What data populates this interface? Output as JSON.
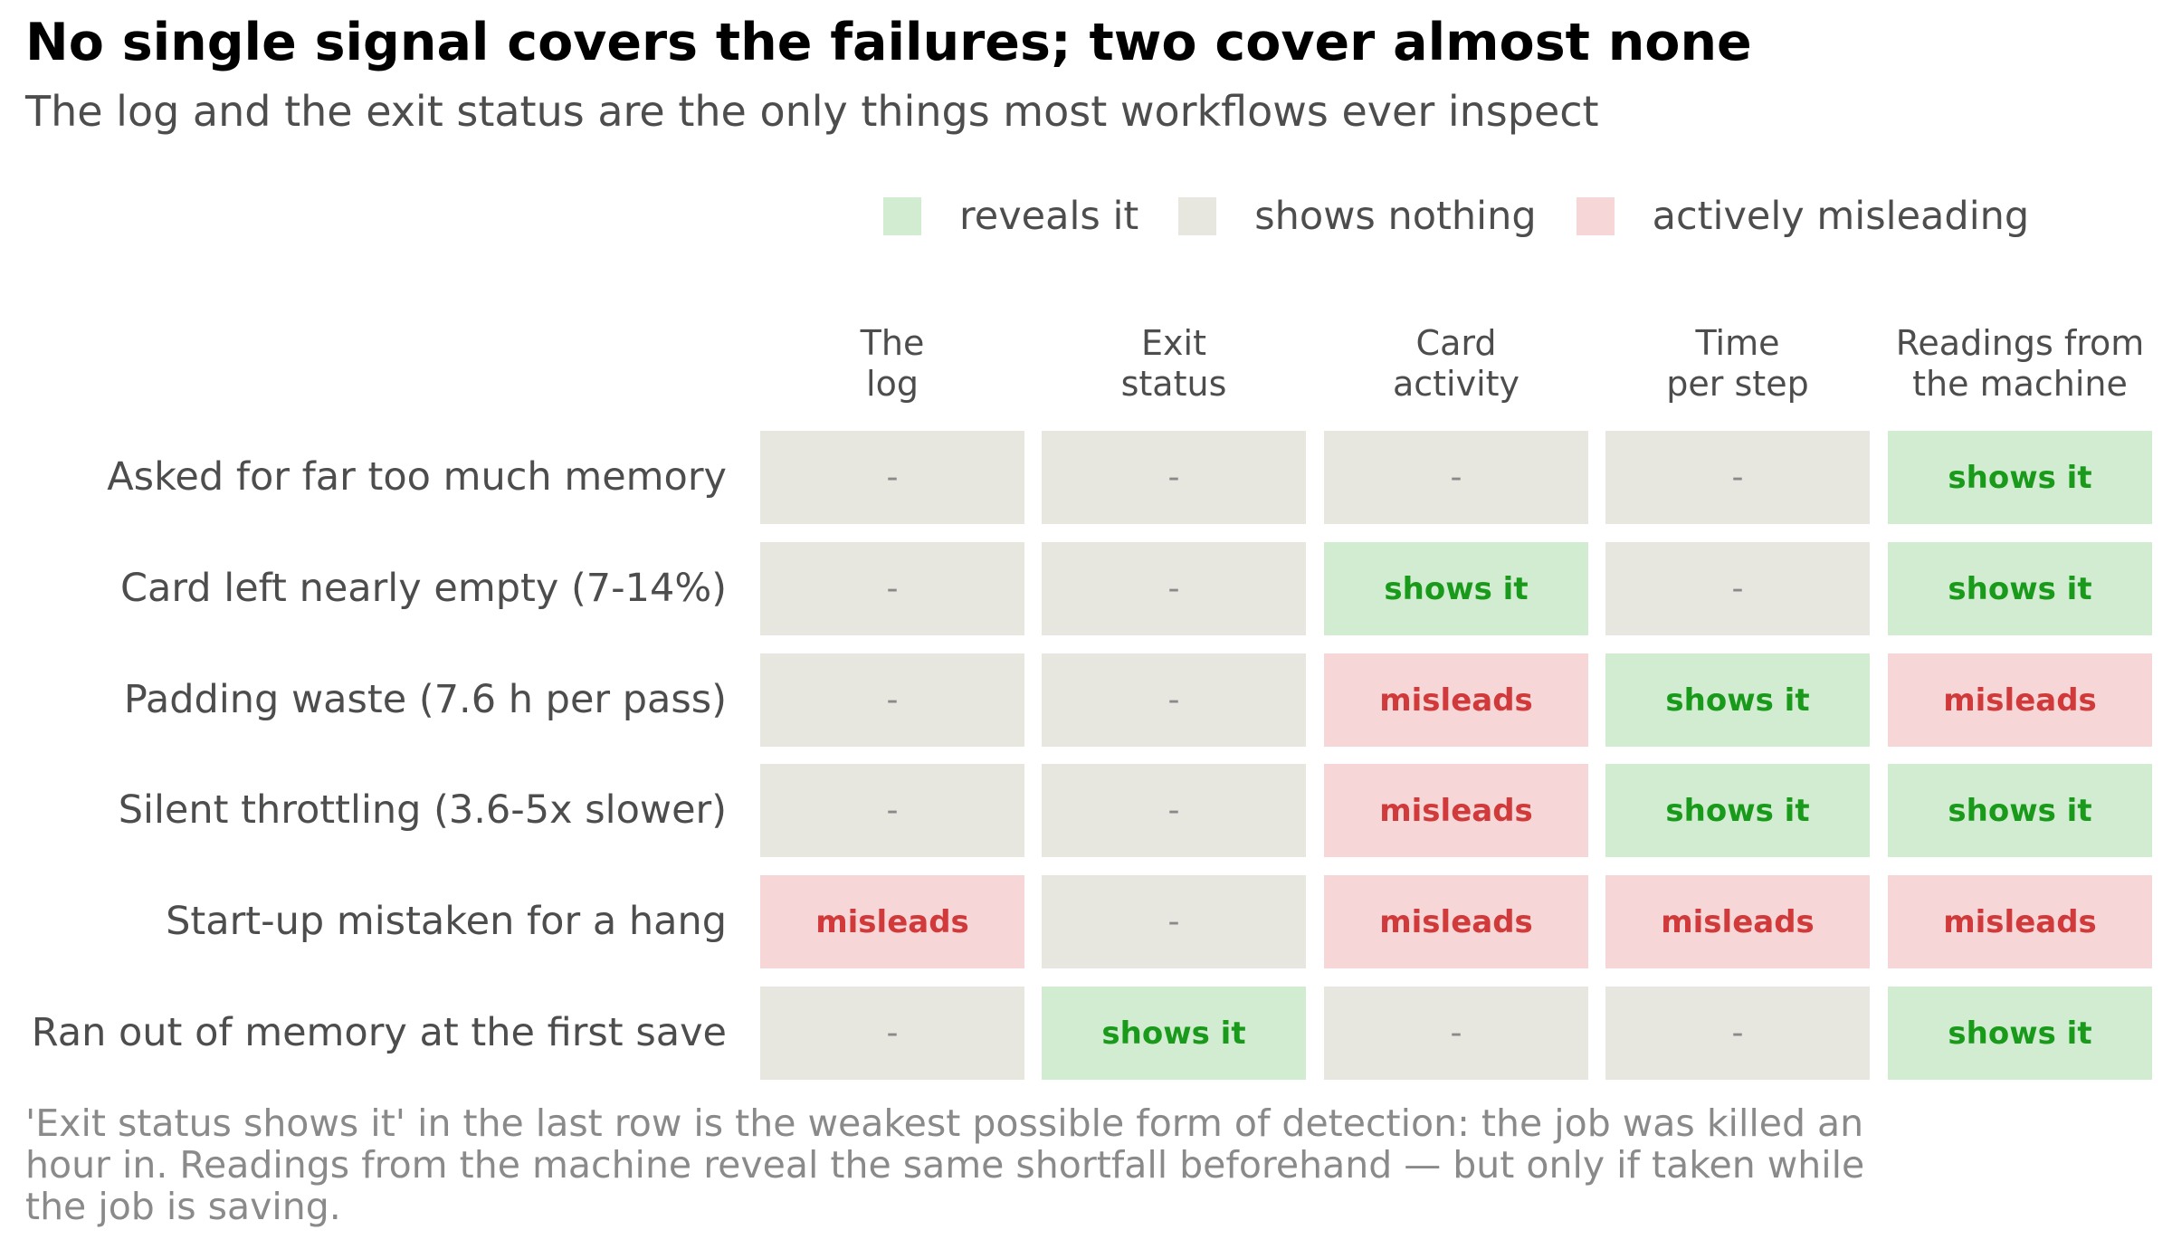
{
  "chart_data": {
    "type": "table",
    "title": "No single signal covers the failures; two cover almost none",
    "subtitle": "The log and the exit status are the only things most workflows ever inspect",
    "legend": [
      {
        "key": "reveals",
        "label": "reveals it",
        "color": "#d2ecd2"
      },
      {
        "key": "nothing",
        "label": "shows nothing",
        "color": "#e7e6df"
      },
      {
        "key": "misleading",
        "label": "actively misleading",
        "color": "#f7d6d8"
      }
    ],
    "columns": [
      "The\nlog",
      "Exit\nstatus",
      "Card\nactivity",
      "Time\nper step",
      "Readings from\nthe machine"
    ],
    "rows": [
      {
        "label": "Asked for far too much memory",
        "cells": [
          "-",
          "-",
          "-",
          "-",
          "shows it"
        ]
      },
      {
        "label": "Card left nearly empty (7-14%)",
        "cells": [
          "-",
          "-",
          "shows it",
          "-",
          "shows it"
        ]
      },
      {
        "label": "Padding waste (7.6 h per pass)",
        "cells": [
          "-",
          "-",
          "misleads",
          "shows it",
          "misleads"
        ]
      },
      {
        "label": "Silent throttling (3.6-5x slower)",
        "cells": [
          "-",
          "-",
          "misleads",
          "shows it",
          "shows it"
        ]
      },
      {
        "label": "Start-up mistaken for a hang",
        "cells": [
          "misleads",
          "-",
          "misleads",
          "misleads",
          "misleads"
        ]
      },
      {
        "label": "Ran out of memory at the first save",
        "cells": [
          "-",
          "shows it",
          "-",
          "-",
          "shows it"
        ]
      }
    ],
    "cell_styles": {
      "shows it": {
        "bg": "#d2ecd2",
        "fg": "#1a9a1a"
      },
      "-": {
        "bg": "#e7e6df",
        "fg": "#8a8a8a"
      },
      "misleads": {
        "bg": "#f7d6d8",
        "fg": "#d03a3a"
      }
    },
    "footnote": "'Exit status shows it' in the last row is the weakest possible form of detection: the job was killed an hour in. Readings from the machine reveal the same shortfall beforehand — but only if taken while the job is saving."
  }
}
